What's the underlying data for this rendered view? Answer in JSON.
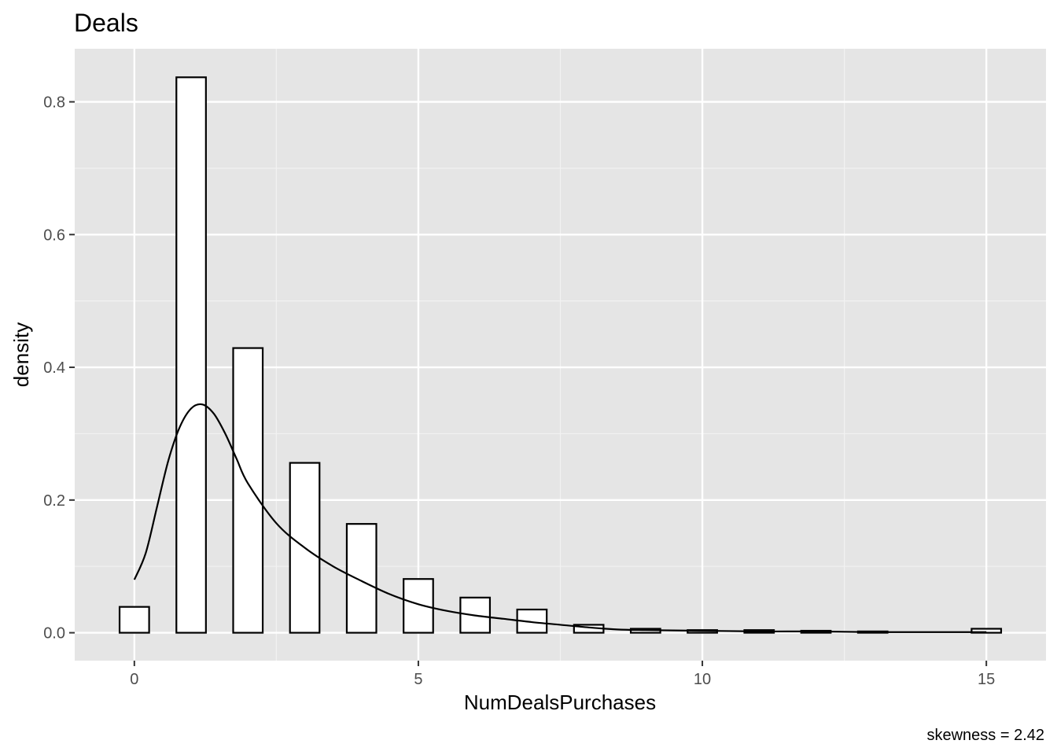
{
  "chart_data": {
    "type": "bar",
    "title": "Deals",
    "xlabel": "NumDealsPurchases",
    "ylabel": "density",
    "caption": "skewness = 2.42",
    "xlim": [
      -1.05,
      16.05
    ],
    "ylim": [
      -0.042,
      0.88
    ],
    "x_ticks": [
      0,
      5,
      10,
      15
    ],
    "x_tick_labels": [
      "0",
      "5",
      "10",
      "15"
    ],
    "y_ticks": [
      0.0,
      0.2,
      0.4,
      0.6,
      0.8
    ],
    "y_tick_labels": [
      "0.0",
      "0.2",
      "0.4",
      "0.6",
      "0.8"
    ],
    "grid": true,
    "bin_width": 0.52,
    "bars": [
      {
        "x": 0,
        "density": 0.039
      },
      {
        "x": 1,
        "density": 0.837
      },
      {
        "x": 2,
        "density": 0.429
      },
      {
        "x": 3,
        "density": 0.256
      },
      {
        "x": 4,
        "density": 0.164
      },
      {
        "x": 5,
        "density": 0.081
      },
      {
        "x": 6,
        "density": 0.053
      },
      {
        "x": 7,
        "density": 0.035
      },
      {
        "x": 8,
        "density": 0.012
      },
      {
        "x": 9,
        "density": 0.006
      },
      {
        "x": 10,
        "density": 0.004
      },
      {
        "x": 11,
        "density": 0.004
      },
      {
        "x": 12,
        "density": 0.003
      },
      {
        "x": 13,
        "density": 0.002
      },
      {
        "x": 15,
        "density": 0.006
      }
    ],
    "density_curve": {
      "x": [
        0,
        0.2,
        0.4,
        0.6,
        0.8,
        1.0,
        1.2,
        1.4,
        1.6,
        1.8,
        2.0,
        2.5,
        3.0,
        3.5,
        4.0,
        4.5,
        5.0,
        5.5,
        6.0,
        6.5,
        7.0,
        7.5,
        8.0,
        8.5,
        9.0,
        10.0,
        11.0,
        12.0,
        13.0,
        14.0,
        15.0
      ],
      "y": [
        0.08,
        0.12,
        0.19,
        0.26,
        0.31,
        0.338,
        0.344,
        0.33,
        0.3,
        0.262,
        0.225,
        0.165,
        0.128,
        0.1,
        0.078,
        0.058,
        0.043,
        0.033,
        0.026,
        0.021,
        0.016,
        0.012,
        0.008,
        0.005,
        0.004,
        0.003,
        0.002,
        0.002,
        0.001,
        0.001,
        0.001
      ]
    },
    "colors": {
      "panel_background": "#e5e5e5",
      "grid_major": "#ffffff",
      "grid_minor": "#f2f2f2",
      "bar_fill": "#ffffff",
      "bar_outline": "#000000",
      "curve": "#000000"
    }
  }
}
